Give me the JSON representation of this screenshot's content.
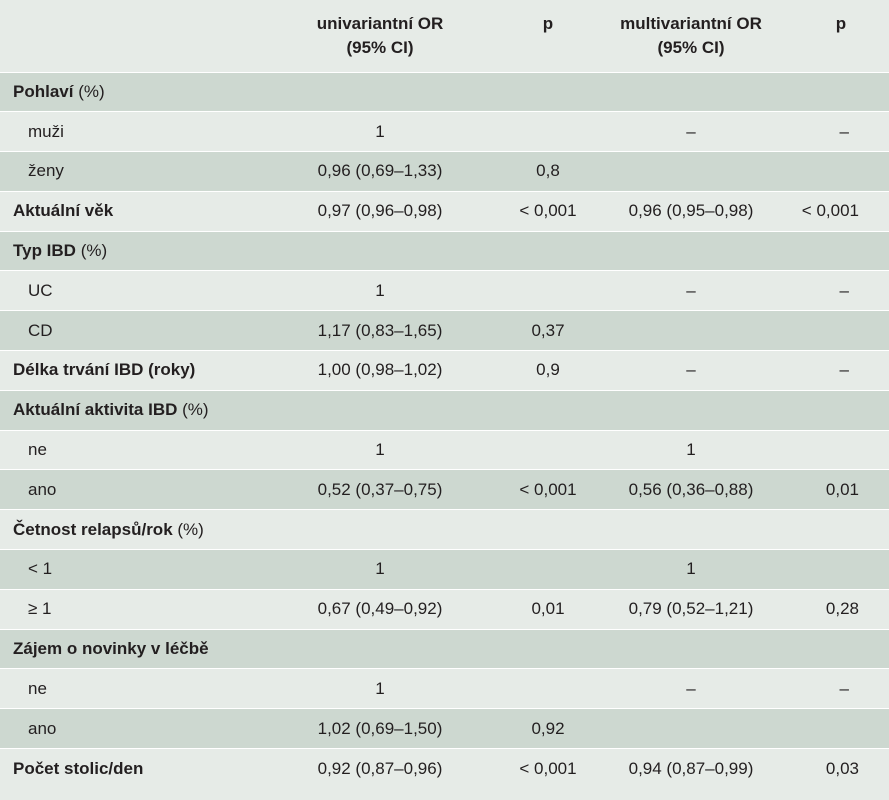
{
  "header": {
    "col1_line1": "univariantní OR",
    "col1_line2": "(95% CI)",
    "col2": "p",
    "col3_line1": "multivariantní OR",
    "col3_line2": "(95% CI)",
    "col4": "p"
  },
  "rows": [
    {
      "label": "Pohlaví",
      "suffix": " (%)",
      "bold": true,
      "sub": false,
      "or1": "",
      "p1": "",
      "or2": "",
      "p2": ""
    },
    {
      "label": "muži",
      "suffix": "",
      "bold": false,
      "sub": true,
      "or1": "1",
      "p1": "",
      "or2": "–",
      "p2": "–"
    },
    {
      "label": "ženy",
      "suffix": "",
      "bold": false,
      "sub": true,
      "or1": "0,96 (0,69–1,33)",
      "p1": "0,8",
      "or2": "",
      "p2": ""
    },
    {
      "label": "Aktuální věk",
      "suffix": "",
      "bold": true,
      "sub": false,
      "or1": "0,97 (0,96–0,98)",
      "p1": "< 0,001",
      "or2": "0,96 (0,95–0,98)",
      "p2": "< 0,001"
    },
    {
      "label": "Typ IBD",
      "suffix": " (%)",
      "bold": true,
      "sub": false,
      "or1": "",
      "p1": "",
      "or2": "",
      "p2": ""
    },
    {
      "label": "UC",
      "suffix": "",
      "bold": false,
      "sub": true,
      "or1": "1",
      "p1": "",
      "or2": "–",
      "p2": "–"
    },
    {
      "label": "CD",
      "suffix": "",
      "bold": false,
      "sub": true,
      "or1": "1,17 (0,83–1,65)",
      "p1": "0,37",
      "or2": "",
      "p2": ""
    },
    {
      "label": "Délka trvání IBD (roky)",
      "suffix": "",
      "bold": true,
      "sub": false,
      "or1": "1,00 (0,98–1,02)",
      "p1": "0,9",
      "or2": "–",
      "p2": "–"
    },
    {
      "label": "Aktuální aktivita IBD",
      "suffix": " (%)",
      "bold": true,
      "sub": false,
      "or1": "",
      "p1": "",
      "or2": "",
      "p2": ""
    },
    {
      "label": "ne",
      "suffix": "",
      "bold": false,
      "sub": true,
      "or1": "1",
      "p1": "",
      "or2": "1",
      "p2": ""
    },
    {
      "label": "ano",
      "suffix": "",
      "bold": false,
      "sub": true,
      "or1": "0,52 (0,37–0,75)",
      "p1": "< 0,001",
      "or2": "0,56 (0,36–0,88)",
      "p2": "0,01"
    },
    {
      "label": "Četnost relapsů/rok",
      "suffix": " (%)",
      "bold": true,
      "sub": false,
      "or1": "",
      "p1": "",
      "or2": "",
      "p2": ""
    },
    {
      "label": "< 1",
      "suffix": "",
      "bold": false,
      "sub": true,
      "or1": "1",
      "p1": "",
      "or2": "1",
      "p2": ""
    },
    {
      "label": "≥ 1",
      "suffix": "",
      "bold": false,
      "sub": true,
      "or1": "0,67 (0,49–0,92)",
      "p1": "0,01",
      "or2": "0,79 (0,52–1,21)",
      "p2": "0,28"
    },
    {
      "label": "Zájem o novinky v léčbě",
      "suffix": "",
      "bold": true,
      "sub": false,
      "or1": "",
      "p1": "",
      "or2": "",
      "p2": ""
    },
    {
      "label": "ne",
      "suffix": "",
      "bold": false,
      "sub": true,
      "or1": "1",
      "p1": "",
      "or2": "–",
      "p2": "–"
    },
    {
      "label": "ano",
      "suffix": "",
      "bold": false,
      "sub": true,
      "or1": "1,02 (0,69–1,50)",
      "p1": "0,92",
      "or2": "",
      "p2": ""
    },
    {
      "label": "Počet stolic/den",
      "suffix": "",
      "bold": true,
      "sub": false,
      "or1": "0,92 (0,87–0,96)",
      "p1": "< 0,001",
      "or2": "0,94 (0,87–0,99)",
      "p2": "0,03"
    }
  ]
}
